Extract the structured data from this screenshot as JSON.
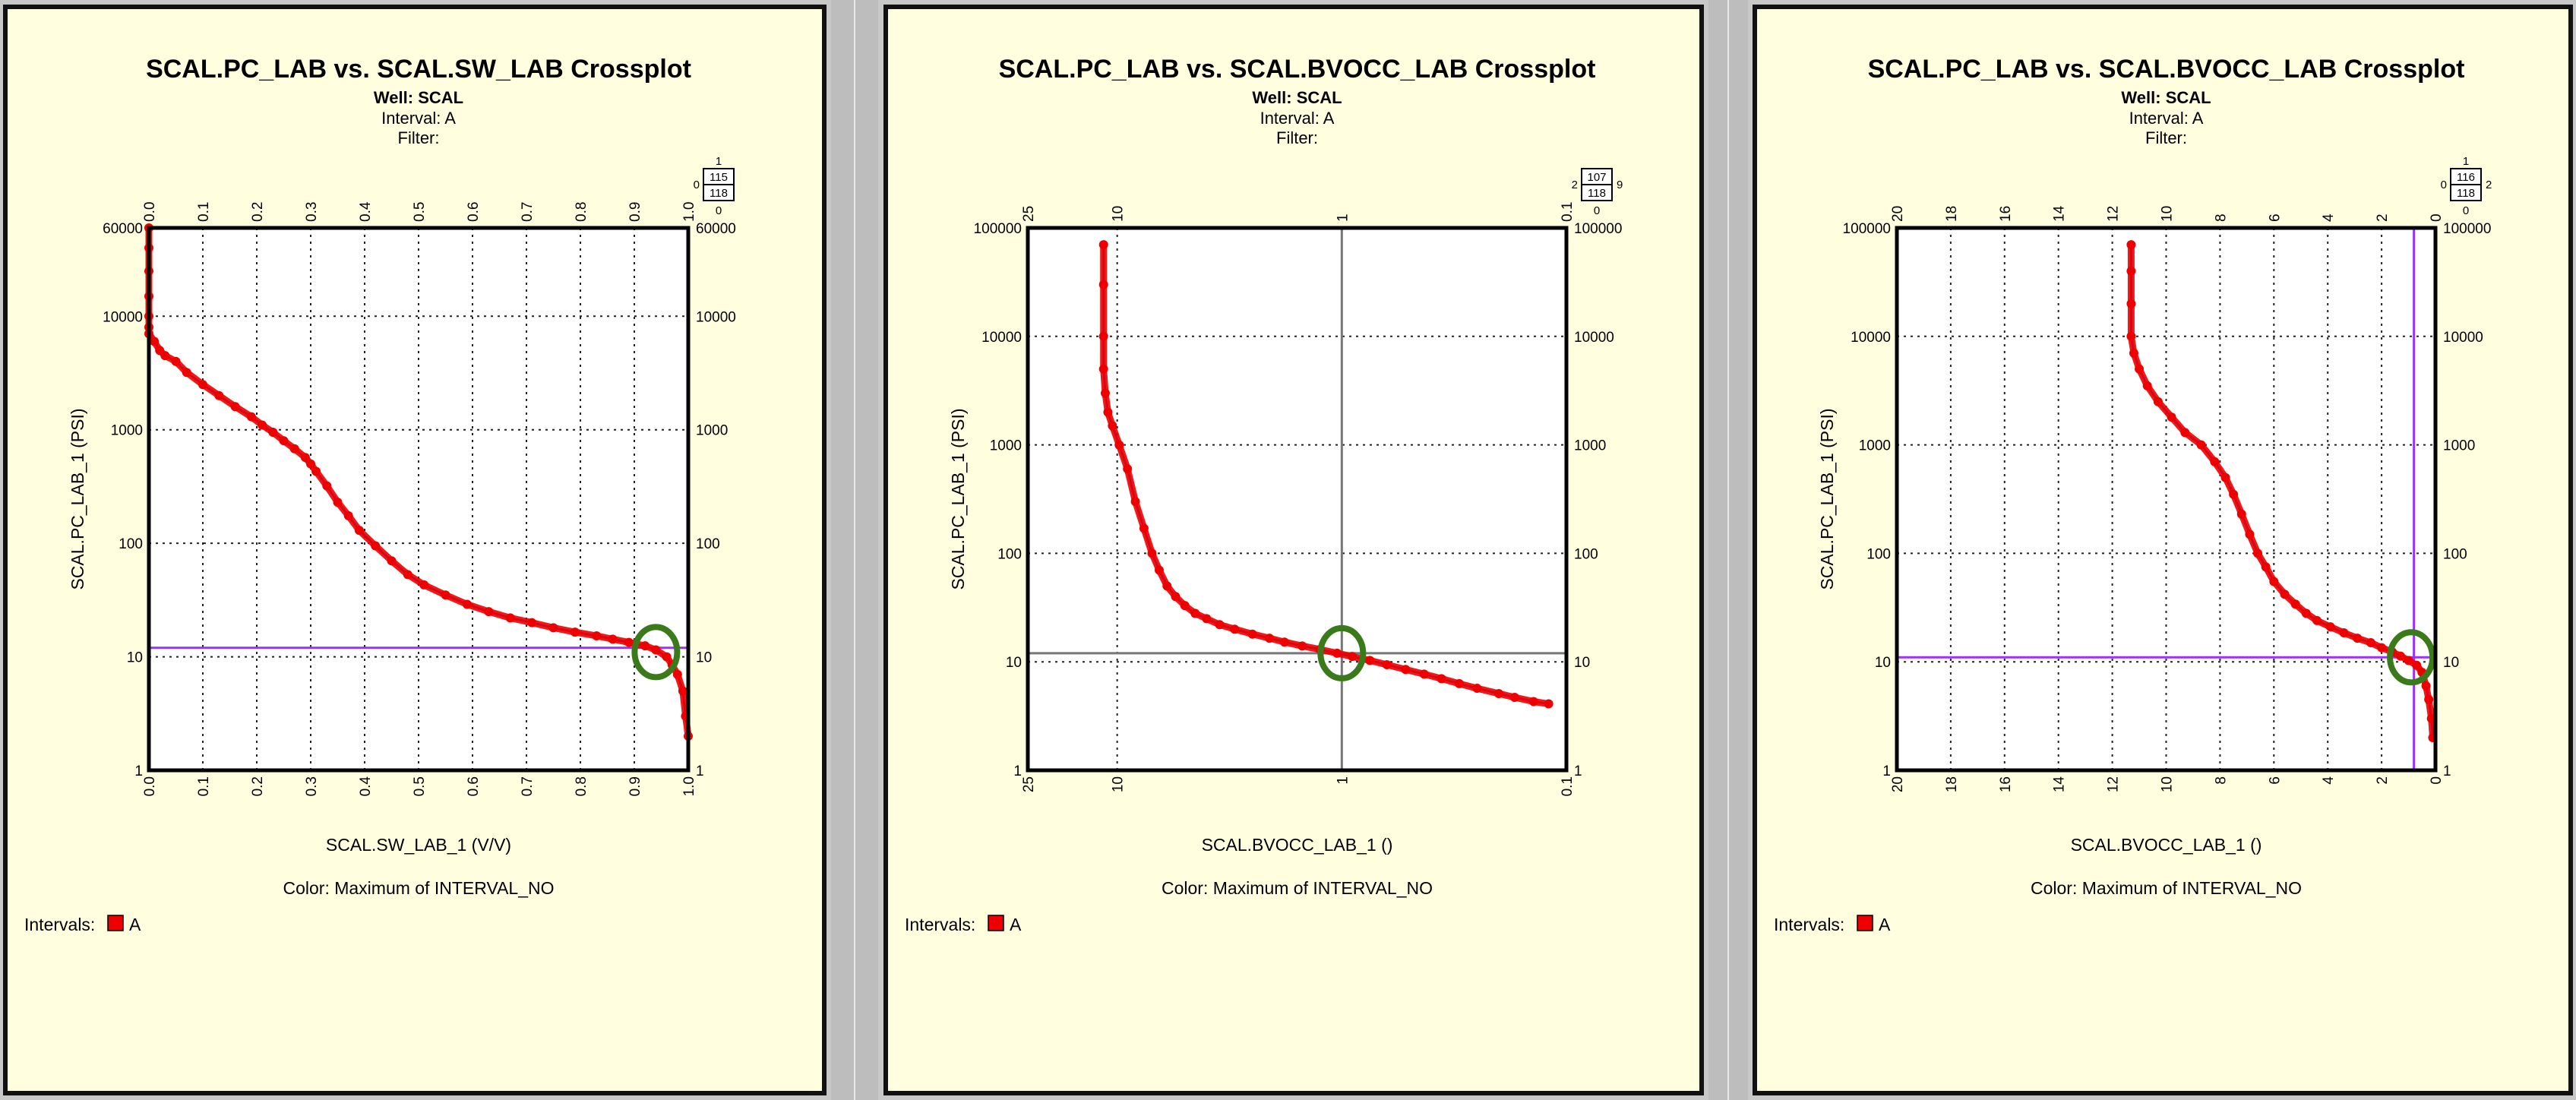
{
  "chart_data": [
    {
      "type": "scatter",
      "title": "SCAL.PC_LAB vs. SCAL.SW_LAB Crossplot",
      "well": "Well: SCAL",
      "interval": "Interval: A",
      "filter": "Filter:",
      "xlabel": "SCAL.SW_LAB_1 (V/V)",
      "ylabel": "SCAL.PC_LAB_1 (PSI)",
      "color_note": "Color: Maximum of INTERVAL_NO",
      "intervals_label": "Intervals:",
      "interval_item": "A",
      "x_scale": "linear",
      "y_scale": "log",
      "xlim": [
        0,
        1
      ],
      "ylim": [
        1,
        60000
      ],
      "x_ticks": [
        "0.0",
        "0.1",
        "0.2",
        "0.3",
        "0.4",
        "0.5",
        "0.6",
        "0.7",
        "0.8",
        "0.9",
        "1.0"
      ],
      "y_ticks": [
        "1",
        "10",
        "100",
        "1000",
        "10000",
        "60000"
      ],
      "grid": true,
      "legend_box": {
        "tl": "1",
        "l": "0",
        "r1": "115",
        "r2": "118",
        "bl": "0"
      },
      "cutoff_lines": [
        {
          "axis": "y",
          "value": 12,
          "color": "#9b30ff"
        }
      ],
      "highlight_ellipse": {
        "x": 0.94,
        "y": 11,
        "color": "#3a7a1a"
      },
      "series": [
        {
          "color": "#ee0000",
          "marker": "circle",
          "x": [
            0.0,
            0.0,
            0.0,
            0.0,
            0.0,
            0.0,
            0.0,
            0.01,
            0.02,
            0.03,
            0.05,
            0.07,
            0.1,
            0.13,
            0.16,
            0.19,
            0.21,
            0.23,
            0.25,
            0.27,
            0.29,
            0.3,
            0.31,
            0.33,
            0.35,
            0.37,
            0.39,
            0.42,
            0.45,
            0.48,
            0.51,
            0.55,
            0.59,
            0.63,
            0.67,
            0.71,
            0.75,
            0.79,
            0.83,
            0.86,
            0.89,
            0.92,
            0.94,
            0.96,
            0.97,
            0.98,
            0.99,
            0.995,
            1.0
          ],
          "y": [
            60000,
            40000,
            25000,
            15000,
            10000,
            8000,
            7000,
            6000,
            5000,
            4500,
            4000,
            3200,
            2500,
            2000,
            1600,
            1300,
            1100,
            950,
            800,
            680,
            570,
            500,
            430,
            320,
            230,
            175,
            130,
            95,
            70,
            53,
            43,
            35,
            29,
            25,
            22,
            20,
            18,
            16.5,
            15.3,
            14.3,
            13.4,
            12.5,
            11.5,
            10,
            8.5,
            7,
            5,
            3,
            2
          ]
        }
      ]
    },
    {
      "type": "scatter",
      "title": "SCAL.PC_LAB vs. SCAL.BVOCC_LAB Crossplot",
      "well": "Well: SCAL",
      "interval": "Interval: A",
      "filter": "Filter:",
      "xlabel": "SCAL.BVOCC_LAB_1 ()",
      "ylabel": "SCAL.PC_LAB_1 (PSI)",
      "color_note": "Color: Maximum of INTERVAL_NO",
      "intervals_label": "Intervals:",
      "interval_item": "A",
      "x_scale": "log-reversed",
      "y_scale": "log",
      "xlim": [
        25,
        0.1
      ],
      "ylim": [
        1,
        100000
      ],
      "x_ticks": [
        "25",
        "10",
        "1",
        "0.1"
      ],
      "y_ticks": [
        "1",
        "10",
        "100",
        "1000",
        "10000",
        "100000"
      ],
      "grid": true,
      "legend_box": {
        "tl": "",
        "l": "2",
        "r1": "107",
        "r2": "118",
        "bl": "0",
        "r": "9"
      },
      "cutoff_lines": [
        {
          "axis": "x",
          "value": 1,
          "color": "#777777"
        },
        {
          "axis": "y",
          "value": 12,
          "color": "#777777"
        }
      ],
      "highlight_ellipse": {
        "x": 1,
        "y": 12,
        "color": "#3a7a1a"
      },
      "series": [
        {
          "color": "#ee0000",
          "marker": "circle",
          "x": [
            11.5,
            11.5,
            11.5,
            11.5,
            11.3,
            11,
            10.5,
            9.8,
            9,
            8.3,
            7.6,
            7,
            6.5,
            6,
            5.5,
            5,
            4.5,
            4,
            3.5,
            3,
            2.5,
            2.1,
            1.8,
            1.5,
            1.25,
            1.05,
            0.9,
            0.75,
            0.63,
            0.52,
            0.43,
            0.36,
            0.3,
            0.25,
            0.2,
            0.17,
            0.14,
            0.12
          ],
          "y": [
            70000,
            30000,
            10000,
            5000,
            3000,
            2000,
            1500,
            1000,
            600,
            300,
            170,
            100,
            70,
            50,
            40,
            33,
            28,
            25,
            22,
            20,
            18,
            16.5,
            15.2,
            14,
            13,
            12,
            11.2,
            10.3,
            9.4,
            8.5,
            7.7,
            7,
            6.3,
            5.7,
            5.1,
            4.7,
            4.3,
            4.1
          ]
        }
      ]
    },
    {
      "type": "scatter",
      "title": "SCAL.PC_LAB vs. SCAL.BVOCC_LAB Crossplot",
      "well": "Well: SCAL",
      "interval": "Interval: A",
      "filter": "Filter:",
      "xlabel": "SCAL.BVOCC_LAB_1 ()",
      "ylabel": "SCAL.PC_LAB_1 (PSI)",
      "color_note": "Color: Maximum of INTERVAL_NO",
      "intervals_label": "Intervals:",
      "interval_item": "A",
      "x_scale": "linear-reversed",
      "y_scale": "log",
      "xlim": [
        20,
        0
      ],
      "ylim": [
        1,
        100000
      ],
      "x_ticks": [
        "20",
        "18",
        "16",
        "14",
        "12",
        "10",
        "8",
        "6",
        "4",
        "2",
        "0"
      ],
      "y_ticks": [
        "1",
        "10",
        "100",
        "1000",
        "10000",
        "100000"
      ],
      "grid": true,
      "legend_box": {
        "tl": "1",
        "l": "0",
        "r1": "116",
        "r2": "118",
        "bl": "0",
        "r": "2"
      },
      "cutoff_lines": [
        {
          "axis": "x",
          "value": 0.8,
          "color": "#9b30ff"
        },
        {
          "axis": "y",
          "value": 11,
          "color": "#9b30ff"
        }
      ],
      "highlight_ellipse": {
        "x": 0.9,
        "y": 11,
        "color": "#3a7a1a"
      },
      "series": [
        {
          "color": "#ee0000",
          "marker": "circle",
          "x": [
            11.3,
            11.3,
            11.3,
            11.3,
            11.2,
            11.0,
            10.7,
            10.3,
            9.8,
            9.3,
            8.7,
            8.2,
            7.8,
            7.5,
            7.2,
            6.9,
            6.6,
            6.3,
            6.0,
            5.6,
            5.2,
            4.8,
            4.4,
            3.9,
            3.4,
            2.9,
            2.4,
            2.0,
            1.6,
            1.3,
            1.0,
            0.7,
            0.5,
            0.35,
            0.25,
            0.15,
            0.1
          ],
          "y": [
            70000,
            40000,
            20000,
            10000,
            7000,
            5000,
            3500,
            2500,
            1800,
            1300,
            1000,
            700,
            500,
            350,
            230,
            150,
            100,
            75,
            55,
            42,
            34,
            28,
            24,
            21,
            18.5,
            16.5,
            15,
            13.5,
            12.3,
            11.3,
            10.3,
            9.3,
            8,
            6,
            4.5,
            3,
            2
          ]
        }
      ]
    }
  ]
}
